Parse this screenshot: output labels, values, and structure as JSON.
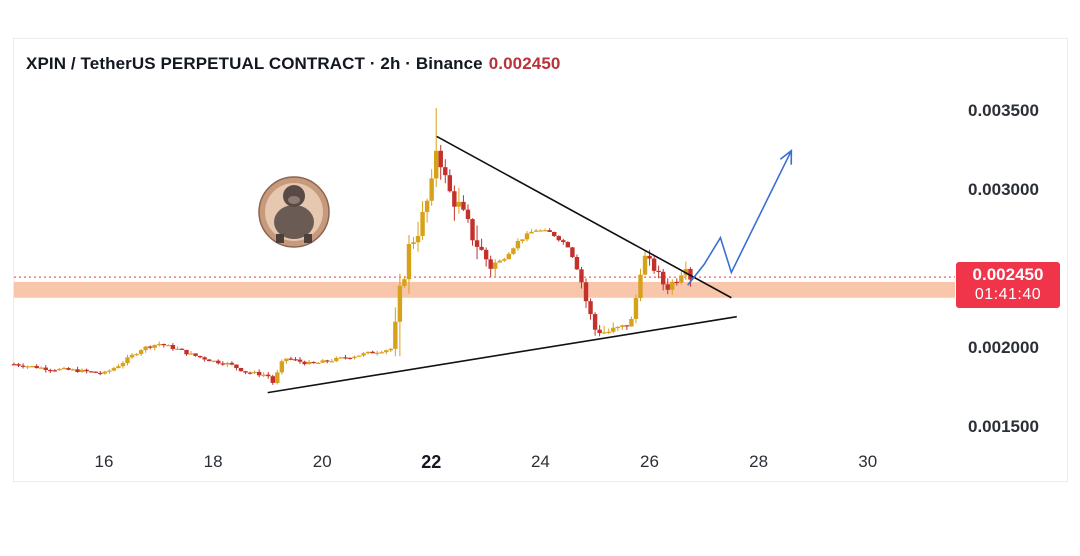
{
  "header": {
    "pair": "XPIN / TetherUS PERPETUAL CONTRACT · 2h · Binance",
    "last_price": "0.002450"
  },
  "price_tag": {
    "price": "0.002450",
    "countdown": "01:41:40"
  },
  "colors": {
    "up": "#d8a11a",
    "down": "#c4302b",
    "wick": "#8a6a2a",
    "zone": "#f6bc9c",
    "projection": "#3b6fd6",
    "trendline": "#111111",
    "price_line": "#f0344a"
  },
  "chart_data": {
    "type": "candlestick",
    "title": "XPIN / TetherUS PERPETUAL CONTRACT · 2h · Binance",
    "interval": "2h",
    "exchange": "Binance",
    "last_price": 0.00245,
    "x_ticks": [
      {
        "label": "16",
        "day": 16
      },
      {
        "label": "18",
        "day": 18
      },
      {
        "label": "20",
        "day": 20
      },
      {
        "label": "22",
        "day": 22,
        "bold": true
      },
      {
        "label": "24",
        "day": 24
      },
      {
        "label": "26",
        "day": 26
      },
      {
        "label": "28",
        "day": 28
      },
      {
        "label": "30",
        "day": 30
      }
    ],
    "y_ticks": [
      {
        "label": "0.003500",
        "value": 0.0035
      },
      {
        "label": "0.003000",
        "value": 0.003
      },
      {
        "label": "0.002000",
        "value": 0.002
      },
      {
        "label": "0.001500",
        "value": 0.0015
      }
    ],
    "ylim": [
      0.00118,
      0.00395
    ],
    "xlim": [
      14.35,
      31.6
    ],
    "grid": false,
    "support_zone": [
      0.00232,
      0.00242
    ],
    "trendlines": [
      {
        "name": "descending-resistance",
        "from": [
          22.1,
          0.00334
        ],
        "to": [
          27.5,
          0.00232
        ]
      },
      {
        "name": "ascending-support",
        "from": [
          19.0,
          0.00172
        ],
        "to": [
          27.6,
          0.0022
        ]
      }
    ],
    "projection": [
      [
        26.7,
        0.0024
      ],
      [
        27.0,
        0.00253
      ],
      [
        27.3,
        0.0027
      ],
      [
        27.5,
        0.00248
      ],
      [
        28.6,
        0.00325
      ]
    ],
    "candle_path": [
      [
        14.35,
        0.0019
      ],
      [
        15.0,
        0.00187
      ],
      [
        15.5,
        0.00186
      ],
      [
        16.0,
        0.00184
      ],
      [
        16.3,
        0.0019
      ],
      [
        16.7,
        0.002
      ],
      [
        17.0,
        0.00203
      ],
      [
        17.3,
        0.002
      ],
      [
        17.6,
        0.00196
      ],
      [
        18.0,
        0.00192
      ],
      [
        18.3,
        0.0019
      ],
      [
        18.6,
        0.00185
      ],
      [
        19.0,
        0.00183
      ],
      [
        19.1,
        0.00178
      ],
      [
        19.3,
        0.00194
      ],
      [
        19.8,
        0.0019
      ],
      [
        20.4,
        0.00194
      ],
      [
        21.0,
        0.00198
      ],
      [
        21.3,
        0.002
      ],
      [
        21.4,
        0.0023
      ],
      [
        21.6,
        0.00265
      ],
      [
        21.8,
        0.00278
      ],
      [
        21.9,
        0.0029
      ],
      [
        22.0,
        0.003
      ],
      [
        22.1,
        0.0033
      ],
      [
        22.3,
        0.003
      ],
      [
        22.5,
        0.0029
      ],
      [
        22.7,
        0.00275
      ],
      [
        22.9,
        0.00262
      ],
      [
        23.1,
        0.00252
      ],
      [
        23.3,
        0.00256
      ],
      [
        23.6,
        0.00268
      ],
      [
        23.9,
        0.00275
      ],
      [
        24.2,
        0.00273
      ],
      [
        24.5,
        0.00265
      ],
      [
        24.7,
        0.0025
      ],
      [
        24.85,
        0.00228
      ],
      [
        25.0,
        0.00212
      ],
      [
        25.2,
        0.0021
      ],
      [
        25.5,
        0.00213
      ],
      [
        25.7,
        0.00218
      ],
      [
        25.8,
        0.00245
      ],
      [
        25.9,
        0.00258
      ],
      [
        26.1,
        0.0025
      ],
      [
        26.3,
        0.00238
      ],
      [
        26.5,
        0.00244
      ],
      [
        26.7,
        0.00255
      ],
      [
        26.75,
        0.00245
      ]
    ],
    "candle_count": 150,
    "annotations": [
      "gorilla avatar badge"
    ]
  }
}
